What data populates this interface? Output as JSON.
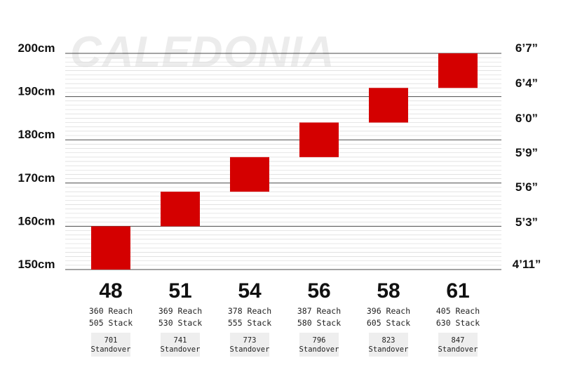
{
  "watermark": "CALEDONIA",
  "colors": {
    "bar": "#d40000",
    "grid_major": "#4a4a4a",
    "grid_minor": "#d9d9d9",
    "standover_bg": "#eeeeee"
  },
  "chart_data": {
    "type": "bar",
    "title": "",
    "xlabel": "",
    "ylabel": "",
    "ylim": [
      150,
      200
    ],
    "grid": true,
    "y_ticks_left": [
      "200cm",
      "190cm",
      "180cm",
      "170cm",
      "160cm",
      "150cm"
    ],
    "y_ticks_right": [
      "6’7”",
      "6’4”",
      "6’0”",
      "5’9”",
      "5’6”",
      "5’3”",
      "4’11”"
    ],
    "categories": [
      "48",
      "51",
      "54",
      "56",
      "58",
      "61"
    ],
    "ranges": [
      [
        150,
        160
      ],
      [
        160,
        168
      ],
      [
        168,
        176
      ],
      [
        176,
        184
      ],
      [
        184,
        192
      ],
      [
        192,
        200
      ]
    ],
    "reach": [
      "360 Reach",
      "369 Reach",
      "378 Reach",
      "387 Reach",
      "396 Reach",
      "405 Reach"
    ],
    "stack": [
      "505 Stack",
      "530 Stack",
      "555 Stack",
      "580 Stack",
      "605 Stack",
      "630 Stack"
    ],
    "standover_values": [
      "701",
      "741",
      "773",
      "796",
      "823",
      "847"
    ],
    "standover_label": "Standover"
  }
}
